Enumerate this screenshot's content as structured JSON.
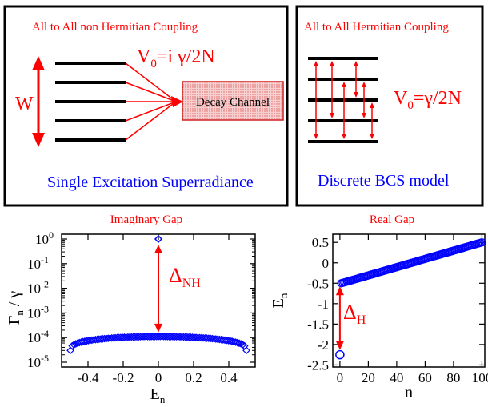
{
  "panel_nh": {
    "title": "All to All non Hermitian Coupling",
    "w_label": "W",
    "coupling_base": "V",
    "coupling_sub": "0",
    "coupling_rest": "=i γ/2N",
    "decay_label": "Decay Channel",
    "caption": "Single Excitation Superradiance"
  },
  "panel_h": {
    "title": "All to All Hermitian Coupling",
    "coupling_base": "V",
    "coupling_sub": "0",
    "coupling_rest": "=γ/2N",
    "caption": "Discrete BCS model"
  },
  "colors": {
    "red": "#ff0000",
    "blue": "#0000ff",
    "fill": "#f4c4c4"
  },
  "chart_data": [
    {
      "type": "scatter",
      "title": "Imaginary  Gap",
      "xlabel_base": "E",
      "xlabel_sub": "n",
      "ylabel_base": "Γ",
      "ylabel_sub": "n",
      "ylabel_rest": " / γ",
      "xlim": [
        -0.55,
        0.55
      ],
      "ylim": [
        1e-05,
        1
      ],
      "yscale": "log",
      "xticks": [
        "-0.4",
        "-0.2",
        "0",
        "0.2",
        "0.4"
      ],
      "yticks": [
        {
          "base": "10",
          "exp": "0"
        },
        {
          "base": "10",
          "exp": "-1"
        },
        {
          "base": "10",
          "exp": "-2"
        },
        {
          "base": "10",
          "exp": "-3"
        },
        {
          "base": "10",
          "exp": "-4"
        },
        {
          "base": "10",
          "exp": "-5"
        }
      ],
      "annotation_base": "Δ",
      "annotation_sub": "NH",
      "series": [
        {
          "marker": "diamond",
          "curve": {
            "x_from": -0.5,
            "x_to": 0.5,
            "n": 99,
            "center": 0.00011,
            "edge": 3e-05
          },
          "outlier": {
            "x": 0.0,
            "y": 1.0
          }
        }
      ]
    },
    {
      "type": "scatter",
      "title": "Real Gap",
      "xlabel": "n",
      "ylabel_base": "E",
      "ylabel_sub": "n",
      "xlim": [
        -5,
        102
      ],
      "ylim": [
        -2.55,
        0.7
      ],
      "xticks": [
        "0",
        "20",
        "40",
        "60",
        "80",
        "100"
      ],
      "yticks": [
        "0.5",
        "0",
        "-0.5",
        "-1",
        "-1.5",
        "-2",
        "-2.5"
      ],
      "annotation_base": "Δ",
      "annotation_sub": "H",
      "series": [
        {
          "marker": "circle",
          "line": {
            "n_from": 1,
            "n_to": 100,
            "y_from": -0.5,
            "y_to": 0.5
          },
          "outlier": {
            "x": 0,
            "y": -2.25
          }
        }
      ]
    }
  ]
}
